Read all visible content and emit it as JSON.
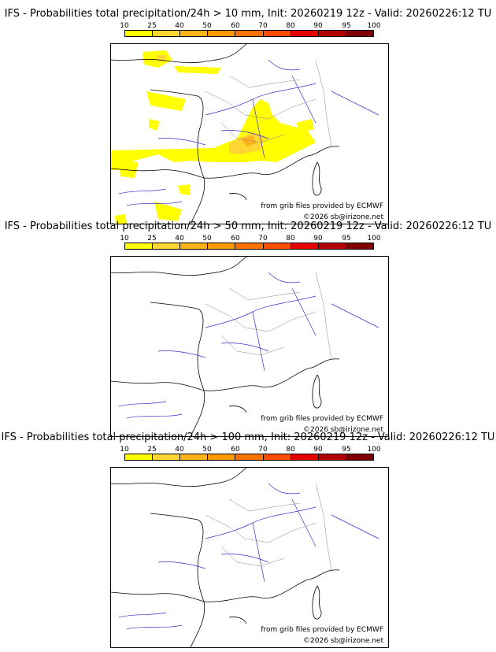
{
  "legend": {
    "ticks": [
      "10",
      "25",
      "40",
      "50",
      "60",
      "70",
      "80",
      "90",
      "95",
      "100"
    ],
    "colors": [
      "#ffff00",
      "#ffd633",
      "#ffb31a",
      "#ff9900",
      "#ff7300",
      "#ff4d00",
      "#e60000",
      "#b30000",
      "#800000",
      "#4d0000"
    ]
  },
  "panels": [
    {
      "title": "IFS - Probabilities total precipitation/24h > 10 mm, Init: 20260219 12z - Valid: 20260226:12 TU",
      "credit_source": "from grib files provided by ECMWF",
      "credit_copyright": "©2026 sb@irizone.net",
      "precipitation_shown": true
    },
    {
      "title": "IFS - Probabilities total precipitation/24h > 50 mm, Init: 20260219 12z - Valid: 20260226:12 TU",
      "credit_source": "from grib files provided by ECMWF",
      "credit_copyright": "©2026 sb@irizone.net",
      "precipitation_shown": false
    },
    {
      "title": "IFS - Probabilities total precipitation/24h > 100 mm, Init: 20260219 12z - Valid: 20260226:12 TU",
      "credit_source": "from grib files provided by ECMWF",
      "credit_copyright": "©2026 sb@irizone.net",
      "precipitation_shown": false
    }
  ]
}
